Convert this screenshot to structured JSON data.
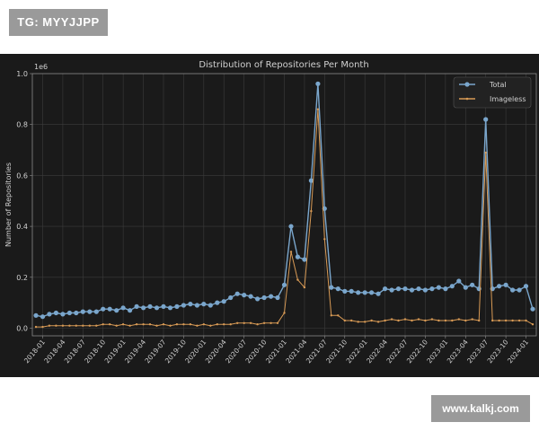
{
  "header": {
    "tag_text": "TG: MYYJJPP"
  },
  "footer": {
    "watermark_text": "www.kalkj.com"
  },
  "colors": {
    "total": "#7aa6cc",
    "imageless": "#d89a55",
    "background": "#1a1a1a",
    "grid": "#3c3c3c",
    "text": "#d0d0d0"
  },
  "chart_data": {
    "type": "line",
    "title": "Distribution of Repositories Per Month",
    "xlabel": "",
    "ylabel": "Number of Repositories",
    "y_multiplier_label": "1e6",
    "ylim": [
      -0.03,
      1.0
    ],
    "yticks": [
      0.0,
      0.2,
      0.4,
      0.6,
      0.8,
      1.0
    ],
    "ytick_labels": [
      "0.0",
      "0.2",
      "0.4",
      "0.6",
      "0.8",
      "1.0"
    ],
    "xtick_labels": [
      "2018-01",
      "2018-04",
      "2018-07",
      "2018-10",
      "2019-01",
      "2019-04",
      "2019-07",
      "2019-10",
      "2020-01",
      "2020-04",
      "2020-07",
      "2020-10",
      "2021-01",
      "2021-04",
      "2021-07",
      "2021-10",
      "2022-01",
      "2022-04",
      "2022-07",
      "2022-10",
      "2023-01",
      "2023-04",
      "2023-07",
      "2023-10",
      "2024-01"
    ],
    "legend_position": "top-right",
    "grid": true,
    "x": [
      "2017-12",
      "2018-01",
      "2018-02",
      "2018-03",
      "2018-04",
      "2018-05",
      "2018-06",
      "2018-07",
      "2018-08",
      "2018-09",
      "2018-10",
      "2018-11",
      "2018-12",
      "2019-01",
      "2019-02",
      "2019-03",
      "2019-04",
      "2019-05",
      "2019-06",
      "2019-07",
      "2019-08",
      "2019-09",
      "2019-10",
      "2019-11",
      "2019-12",
      "2020-01",
      "2020-02",
      "2020-03",
      "2020-04",
      "2020-05",
      "2020-06",
      "2020-07",
      "2020-08",
      "2020-09",
      "2020-10",
      "2020-11",
      "2020-12",
      "2021-01",
      "2021-02",
      "2021-03",
      "2021-04",
      "2021-05",
      "2021-06",
      "2021-07",
      "2021-08",
      "2021-09",
      "2021-10",
      "2021-11",
      "2021-12",
      "2022-01",
      "2022-02",
      "2022-03",
      "2022-04",
      "2022-05",
      "2022-06",
      "2022-07",
      "2022-08",
      "2022-09",
      "2022-10",
      "2022-11",
      "2022-12",
      "2023-01",
      "2023-02",
      "2023-03",
      "2023-04",
      "2023-05",
      "2023-06",
      "2023-07",
      "2023-08",
      "2023-09",
      "2023-10",
      "2023-11",
      "2023-12",
      "2024-01",
      "2024-02"
    ],
    "series": [
      {
        "name": "Total",
        "values": [
          0.05,
          0.045,
          0.055,
          0.06,
          0.055,
          0.06,
          0.06,
          0.065,
          0.065,
          0.065,
          0.075,
          0.075,
          0.07,
          0.08,
          0.07,
          0.085,
          0.08,
          0.085,
          0.08,
          0.085,
          0.08,
          0.085,
          0.09,
          0.095,
          0.09,
          0.095,
          0.09,
          0.1,
          0.105,
          0.12,
          0.135,
          0.13,
          0.125,
          0.115,
          0.12,
          0.125,
          0.12,
          0.17,
          0.4,
          0.28,
          0.27,
          0.58,
          0.96,
          0.47,
          0.16,
          0.155,
          0.145,
          0.145,
          0.14,
          0.14,
          0.14,
          0.135,
          0.155,
          0.15,
          0.155,
          0.155,
          0.15,
          0.155,
          0.15,
          0.155,
          0.16,
          0.155,
          0.165,
          0.185,
          0.16,
          0.17,
          0.155,
          0.82,
          0.155,
          0.165,
          0.17,
          0.15,
          0.15,
          0.165,
          0.075
        ]
      },
      {
        "name": "Imageless",
        "values": [
          0.005,
          0.005,
          0.01,
          0.01,
          0.01,
          0.01,
          0.01,
          0.01,
          0.01,
          0.01,
          0.015,
          0.015,
          0.01,
          0.015,
          0.01,
          0.015,
          0.015,
          0.015,
          0.01,
          0.015,
          0.01,
          0.015,
          0.015,
          0.015,
          0.01,
          0.015,
          0.01,
          0.015,
          0.015,
          0.015,
          0.02,
          0.02,
          0.02,
          0.015,
          0.02,
          0.02,
          0.02,
          0.06,
          0.3,
          0.19,
          0.16,
          0.46,
          0.86,
          0.35,
          0.05,
          0.05,
          0.03,
          0.03,
          0.025,
          0.025,
          0.03,
          0.025,
          0.03,
          0.035,
          0.03,
          0.035,
          0.03,
          0.035,
          0.03,
          0.035,
          0.03,
          0.03,
          0.03,
          0.035,
          0.03,
          0.035,
          0.03,
          0.69,
          0.03,
          0.03,
          0.03,
          0.03,
          0.03,
          0.03,
          0.015
        ]
      }
    ]
  }
}
